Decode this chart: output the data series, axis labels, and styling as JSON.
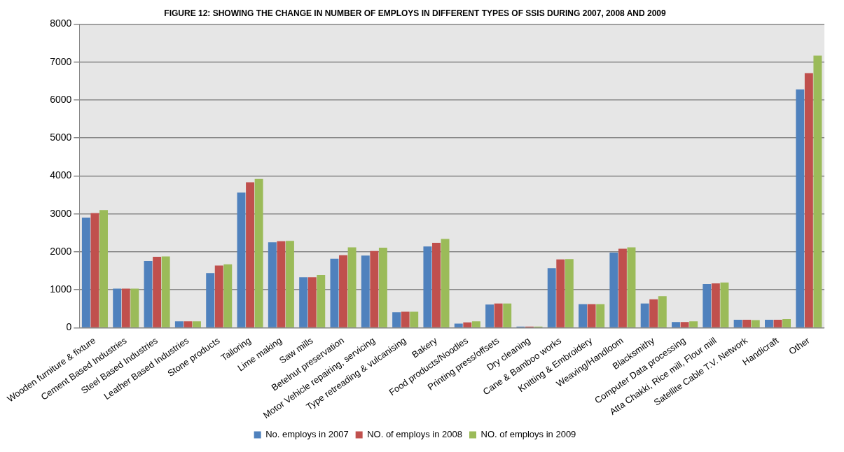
{
  "chart_data": {
    "type": "bar",
    "title": "FIGURE 12: SHOWING THE CHANGE IN NUMBER OF EMPLOYS IN DIFFERENT TYPES OF SSIS DURING 2007, 2008 AND 2009",
    "categories": [
      "Wooden furniture & fixture",
      "Cement Based Industries",
      "Steel Based Industries",
      "Leather Based Industries",
      "Stone products",
      "Tailoring",
      "Lime making",
      "Saw mills",
      "Betelnut preservation",
      "Motor Vehicle repairing, servicing",
      "Type retreading & vulcanising",
      "Bakery",
      "Food products/Noodles",
      "Printing press/offsets",
      "Dry cleaning",
      "Cane & Bamboo works",
      "Knitting & Embroidery",
      "Weaving/Handloom",
      "Blacksmithy",
      "Computer Data processing",
      "Atta Chakki, Rice mill, Flour mill",
      "Satellite Cable T.V. Network",
      "Handicraft",
      "Other"
    ],
    "series": [
      {
        "name": "No. employs in 2007",
        "color": "#4f81bd",
        "values": [
          2900,
          1030,
          1760,
          170,
          1440,
          3560,
          2250,
          1330,
          1820,
          1900,
          410,
          2140,
          110,
          610,
          30,
          1570,
          620,
          1980,
          640,
          150,
          1150,
          210,
          210,
          6280
        ]
      },
      {
        "name": "NO. of employs in 2008",
        "color": "#c0504d",
        "values": [
          3020,
          1030,
          1870,
          170,
          1640,
          3830,
          2280,
          1330,
          1910,
          2020,
          420,
          2240,
          140,
          640,
          30,
          1800,
          620,
          2080,
          750,
          150,
          1170,
          210,
          210,
          6710
        ]
      },
      {
        "name": "NO. of employs in 2009",
        "color": "#9bbb59",
        "values": [
          3100,
          1030,
          1880,
          170,
          1670,
          3920,
          2290,
          1390,
          2120,
          2110,
          420,
          2340,
          170,
          640,
          30,
          1810,
          620,
          2120,
          830,
          170,
          1190,
          200,
          230,
          7170
        ]
      }
    ],
    "ylim": [
      0,
      8000
    ],
    "yticks": [
      0,
      1000,
      2000,
      3000,
      4000,
      5000,
      6000,
      7000,
      8000
    ],
    "grid": "y",
    "legend": "bottom"
  }
}
